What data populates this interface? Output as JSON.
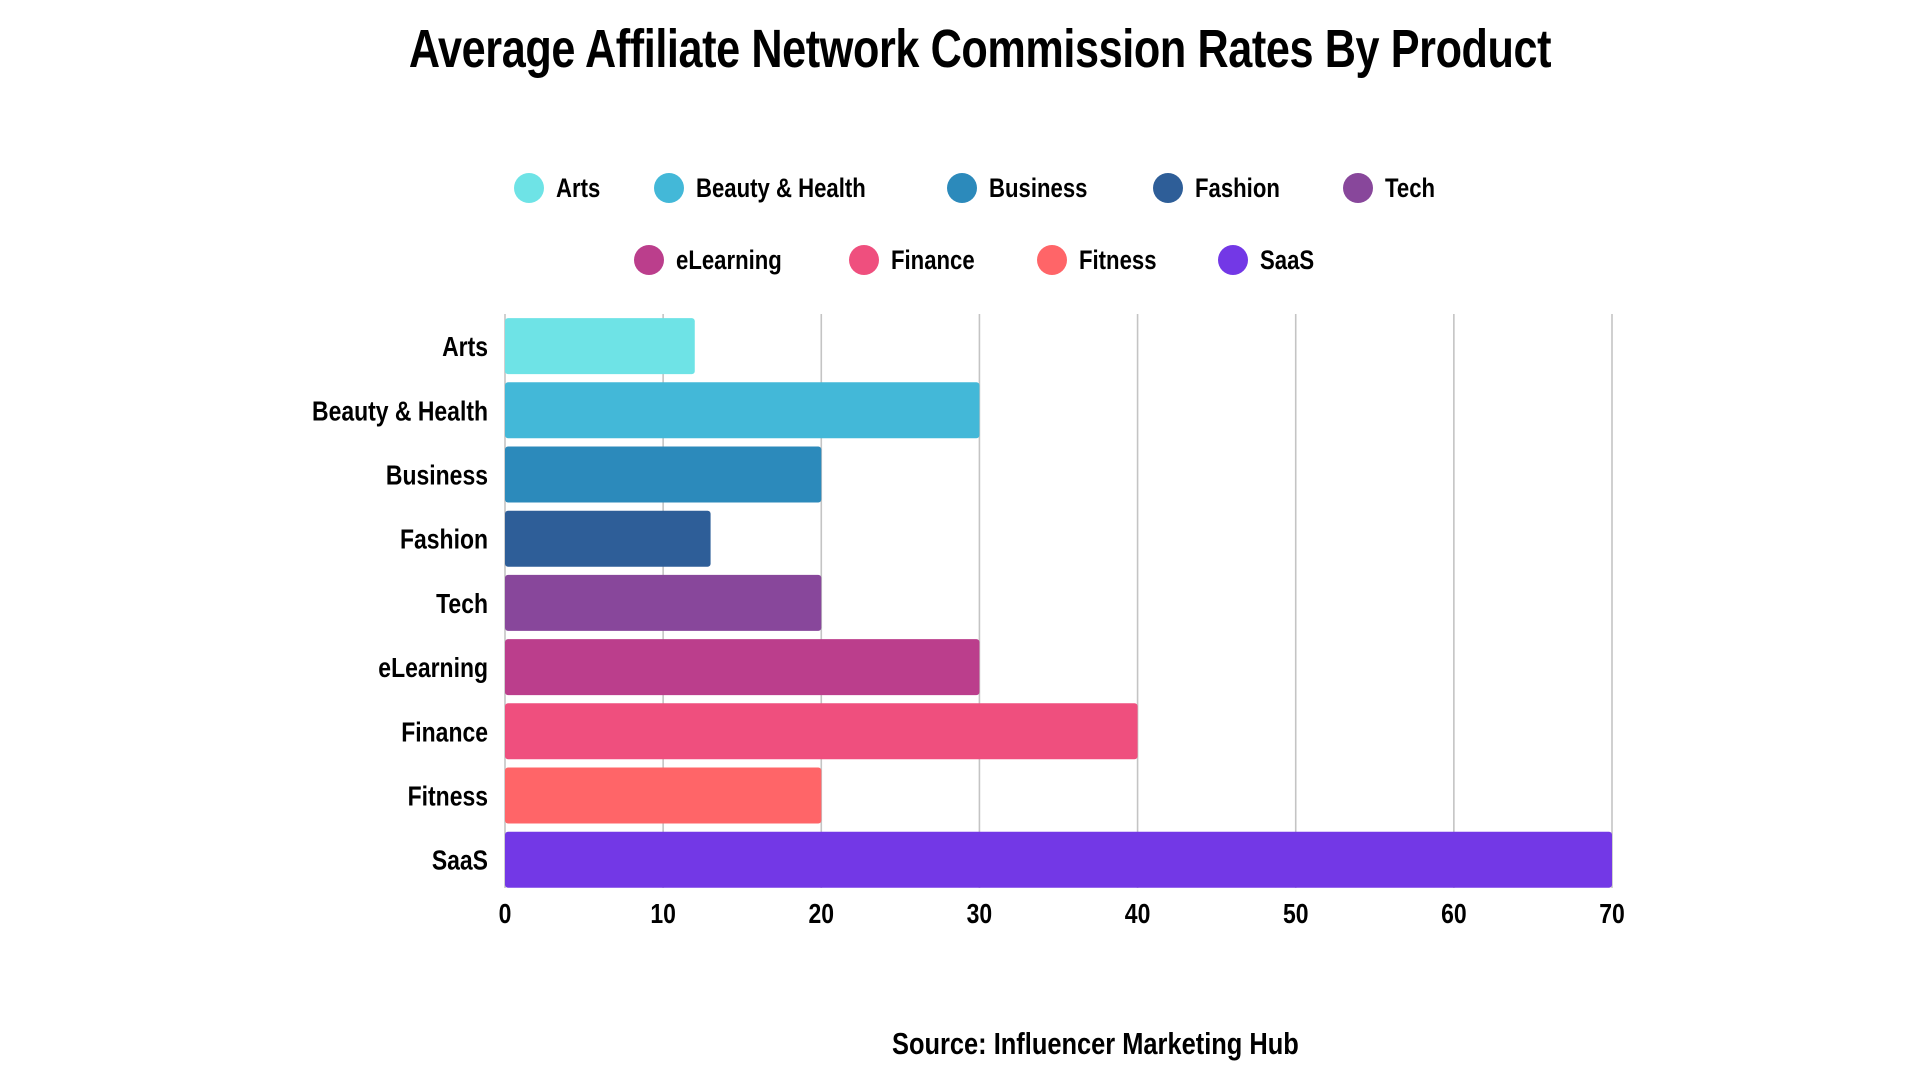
{
  "chart_data": {
    "type": "bar",
    "orientation": "horizontal",
    "title": "Average Affiliate Network Commission Rates By Product",
    "categories": [
      "Arts",
      "Beauty & Health",
      "Business",
      "Fashion",
      "Tech",
      "eLearning",
      "Finance",
      "Fitness",
      "SaaS"
    ],
    "values": [
      12,
      30,
      20,
      13,
      20,
      30,
      40,
      20,
      70
    ],
    "colors": [
      "#6EE3E6",
      "#43B8D8",
      "#2C8ABB",
      "#2E5E98",
      "#88479B",
      "#BB3E8C",
      "#EF4F7E",
      "#FF6568",
      "#7338E6"
    ],
    "xlim": [
      0,
      70
    ],
    "xticks": [
      "0",
      "10",
      "20",
      "30",
      "40",
      "50",
      "60",
      "70"
    ],
    "xlabel": "",
    "ylabel": "",
    "grid": "vertical",
    "legend_position": "top",
    "legend": [
      [
        {
          "label": "Arts",
          "color": "#6EE3E6"
        },
        {
          "label": "Beauty & Health",
          "color": "#43B8D8"
        },
        {
          "label": "Business",
          "color": "#2C8ABB"
        },
        {
          "label": "Fashion",
          "color": "#2E5E98"
        },
        {
          "label": "Tech",
          "color": "#88479B"
        }
      ],
      [
        {
          "label": "eLearning",
          "color": "#BB3E8C"
        },
        {
          "label": "Finance",
          "color": "#EF4F7E"
        },
        {
          "label": "Fitness",
          "color": "#FF6568"
        },
        {
          "label": "SaaS",
          "color": "#7338E6"
        }
      ]
    ],
    "source": "Source: Influencer Marketing Hub"
  }
}
